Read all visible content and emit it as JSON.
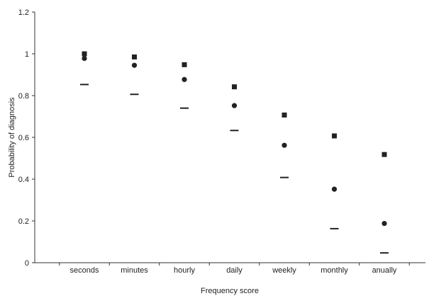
{
  "chart_data": {
    "type": "scatter",
    "title": "",
    "xlabel": "Frequency score",
    "ylabel": "Probability of diagnosis",
    "ylim": [
      0,
      1.2
    ],
    "yticks": [
      "0",
      "0.2",
      "0.4",
      "0.6",
      "0.8",
      "1",
      "1.2"
    ],
    "categories": [
      "seconds",
      "minutes",
      "hourly",
      "daily",
      "weekly",
      "monthly",
      "anually"
    ],
    "grid": false,
    "legend": "none",
    "series": [
      {
        "marker": "square",
        "color": "#222222",
        "values": [
          1.0,
          0.985,
          0.948,
          0.842,
          0.707,
          0.607,
          0.518
        ]
      },
      {
        "marker": "circle",
        "color": "#222222",
        "values": [
          0.978,
          0.945,
          0.877,
          0.752,
          0.562,
          0.352,
          0.188
        ]
      },
      {
        "marker": "dash",
        "color": "#222222",
        "values": [
          0.853,
          0.806,
          0.74,
          0.633,
          0.408,
          0.163,
          0.047
        ]
      }
    ]
  }
}
